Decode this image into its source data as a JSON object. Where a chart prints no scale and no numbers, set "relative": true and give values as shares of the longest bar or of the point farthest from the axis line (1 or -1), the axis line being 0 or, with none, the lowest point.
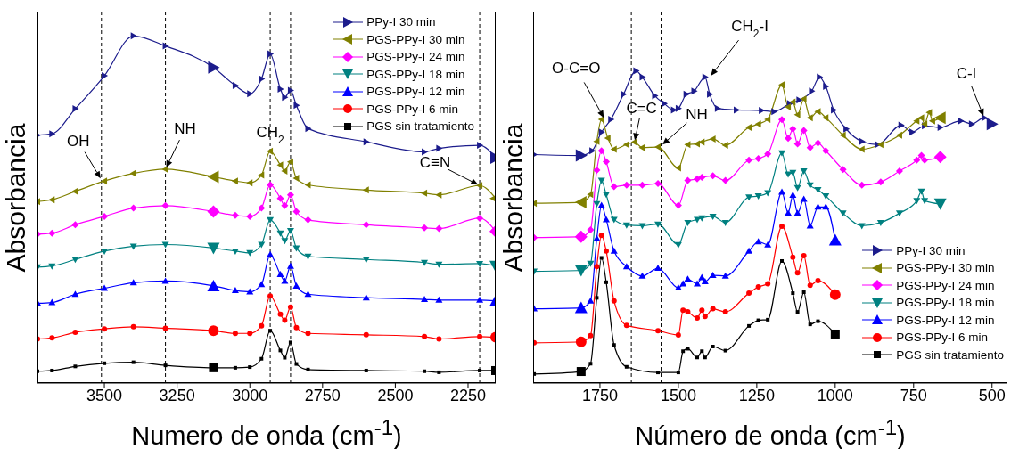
{
  "chart_data": [
    {
      "type": "line",
      "ylabel": "Absorbancia",
      "xlabel": "Numero de onda (cm$^{-1}$)",
      "relative": true,
      "xlim": [
        3730,
        2155
      ],
      "xticks": [
        3500,
        3250,
        3000,
        2750,
        2500,
        2250
      ],
      "legend": "top right",
      "line_style": "solid",
      "x": [
        3730,
        3680,
        3600,
        3500,
        3400,
        3290,
        3125,
        3050,
        3000,
        2960,
        2930,
        2895,
        2880,
        2860,
        2840,
        2800,
        2600,
        2400,
        2350,
        2210,
        2155
      ],
      "series": [
        {
          "name": "PPy-I 30 min",
          "color": "#1c1c8c",
          "marker": "triangle",
          "values": [
            0.714,
            0.718,
            0.79,
            0.885,
            1.0,
            0.971,
            0.909,
            0.857,
            0.833,
            0.876,
            0.948,
            0.847,
            0.823,
            0.843,
            0.8,
            0.733,
            0.695,
            0.666,
            0.676,
            0.685,
            0.649
          ]
        },
        {
          "name": "PGS-PPy-I 30 min",
          "color": "#808000",
          "marker": "triangle",
          "values": [
            0.523,
            0.528,
            0.552,
            0.582,
            0.604,
            0.616,
            0.594,
            0.582,
            0.577,
            0.599,
            0.668,
            0.628,
            0.611,
            0.637,
            0.59,
            0.571,
            0.556,
            0.547,
            0.542,
            0.569,
            0.532
          ]
        },
        {
          "name": "PGS-PPy-I 24 min",
          "color": "#ff00ff",
          "marker": "diamond",
          "values": [
            0.429,
            0.432,
            0.456,
            0.48,
            0.504,
            0.511,
            0.494,
            0.483,
            0.48,
            0.504,
            0.571,
            0.532,
            0.511,
            0.542,
            0.494,
            0.47,
            0.456,
            0.447,
            0.445,
            0.475,
            0.437
          ]
        },
        {
          "name": "PGS-PPy-I 18 min",
          "color": "#008080",
          "marker": "triangle",
          "values": [
            0.334,
            0.337,
            0.356,
            0.38,
            0.394,
            0.399,
            0.389,
            0.38,
            0.375,
            0.399,
            0.47,
            0.432,
            0.41,
            0.439,
            0.389,
            0.365,
            0.356,
            0.347,
            0.342,
            0.344,
            0.337
          ]
        },
        {
          "name": "PGS-PPy-I 12 min",
          "color": "#0000ff",
          "marker": "triangle",
          "values": [
            0.23,
            0.232,
            0.256,
            0.273,
            0.289,
            0.294,
            0.28,
            0.267,
            0.263,
            0.284,
            0.37,
            0.313,
            0.294,
            0.337,
            0.28,
            0.256,
            0.246,
            0.241,
            0.239,
            0.239,
            0.237
          ]
        },
        {
          "name": "PGS-PPy-I 6 min",
          "color": "#ff0000",
          "marker": "circle",
          "values": [
            0.127,
            0.13,
            0.146,
            0.156,
            0.162,
            0.158,
            0.151,
            0.143,
            0.143,
            0.165,
            0.251,
            0.198,
            0.181,
            0.219,
            0.16,
            0.143,
            0.139,
            0.134,
            0.127,
            0.134,
            0.132
          ]
        },
        {
          "name": "PGS sin tratamiento",
          "color": "#000000",
          "marker": "square",
          "values": [
            0.034,
            0.036,
            0.048,
            0.057,
            0.06,
            0.051,
            0.044,
            0.044,
            0.046,
            0.07,
            0.151,
            0.094,
            0.073,
            0.117,
            0.055,
            0.039,
            0.036,
            0.034,
            0.031,
            0.036,
            0.036
          ]
        }
      ],
      "ref_lines": [
        {
          "axis": "x",
          "value": 3510,
          "color": "#000000",
          "line_style": "dashed"
        },
        {
          "axis": "x",
          "value": 3290,
          "color": "#000000",
          "line_style": "dashed"
        },
        {
          "axis": "x",
          "value": 2930,
          "color": "#000000",
          "line_style": "dashed"
        },
        {
          "axis": "x",
          "value": 2860,
          "color": "#000000",
          "line_style": "dashed"
        },
        {
          "axis": "x",
          "value": 2210,
          "color": "#000000",
          "line_style": "dashed"
        }
      ],
      "annotations": [
        {
          "text": "OH",
          "x": 3510,
          "y": 0.585
        },
        {
          "text": "NH",
          "x": 3290,
          "y": 0.616
        },
        {
          "text": "CH$_{2}$",
          "x": 2930,
          "y": 0.668
        },
        {
          "text": "C≡N",
          "x": 2210,
          "y": 0.569
        }
      ]
    },
    {
      "type": "line",
      "ylabel": "Absorbancia",
      "xlabel": "Número de onda (cm$^{-1}$)",
      "relative": true,
      "xlim": [
        1963,
        451
      ],
      "xticks": [
        1750,
        1500,
        1250,
        1000,
        750,
        500
      ],
      "legend": "bottom right",
      "line_style": "solid",
      "series": [
        {
          "name": "PPy-I 30 min",
          "color": "#1c1c8c",
          "marker": "triangle",
          "x": [
            1960,
            1810,
            1775,
            1745,
            1715,
            1675,
            1635,
            1615,
            1575,
            1545,
            1515,
            1500,
            1475,
            1450,
            1415,
            1400,
            1375,
            1315,
            1235,
            1195,
            1145,
            1115,
            1075,
            1050,
            1030,
            1005,
            965,
            915,
            865,
            790,
            755,
            715,
            665,
            600,
            565,
            525,
            500
          ],
          "values": [
            0.732,
            0.729,
            0.744,
            0.804,
            0.845,
            0.925,
            1.0,
            0.98,
            0.92,
            0.895,
            0.875,
            0.88,
            0.925,
            0.935,
            0.98,
            0.925,
            0.88,
            0.875,
            0.873,
            0.87,
            0.895,
            0.907,
            0.935,
            0.98,
            0.95,
            0.875,
            0.814,
            0.774,
            0.764,
            0.826,
            0.804,
            0.824,
            0.819,
            0.84,
            0.83,
            0.85,
            0.83
          ]
        },
        {
          "name": "PGS-PPy-I 30 min",
          "color": "#808000",
          "marker": "triangle",
          "x": [
            1960,
            1810,
            1780,
            1760,
            1745,
            1725,
            1705,
            1665,
            1640,
            1615,
            1565,
            1500,
            1470,
            1440,
            1425,
            1390,
            1350,
            1275,
            1245,
            1215,
            1170,
            1150,
            1135,
            1120,
            1100,
            1080,
            1055,
            1030,
            975,
            915,
            855,
            795,
            740,
            725,
            715,
            700,
            690,
            665
          ],
          "values": [
            0.576,
            0.579,
            0.604,
            0.774,
            0.845,
            0.785,
            0.749,
            0.764,
            0.772,
            0.754,
            0.756,
            0.689,
            0.764,
            0.766,
            0.772,
            0.782,
            0.762,
            0.819,
            0.83,
            0.845,
            0.955,
            0.885,
            0.9,
            0.86,
            0.91,
            0.85,
            0.87,
            0.85,
            0.794,
            0.749,
            0.764,
            0.794,
            0.84,
            0.85,
            0.83,
            0.867,
            0.84,
            0.85
          ]
        },
        {
          "name": "PGS-PPy-I 24 min",
          "color": "#ff00ff",
          "marker": "diamond",
          "x": [
            1960,
            1810,
            1780,
            1760,
            1745,
            1730,
            1705,
            1665,
            1615,
            1565,
            1500,
            1470,
            1440,
            1425,
            1390,
            1350,
            1275,
            1245,
            1215,
            1170,
            1150,
            1135,
            1120,
            1100,
            1080,
            1055,
            1030,
            975,
            915,
            855,
            795,
            740,
            725,
            715,
            665
          ],
          "values": [
            0.466,
            0.469,
            0.491,
            0.682,
            0.744,
            0.709,
            0.629,
            0.634,
            0.634,
            0.639,
            0.569,
            0.649,
            0.654,
            0.659,
            0.664,
            0.649,
            0.714,
            0.719,
            0.734,
            0.844,
            0.784,
            0.814,
            0.766,
            0.809,
            0.754,
            0.769,
            0.744,
            0.684,
            0.634,
            0.644,
            0.679,
            0.714,
            0.729,
            0.714,
            0.724
          ]
        },
        {
          "name": "PGS-PPy-I 18 min",
          "color": "#008080",
          "marker": "triangle",
          "x": [
            1960,
            1810,
            1780,
            1760,
            1745,
            1730,
            1705,
            1665,
            1615,
            1565,
            1500,
            1470,
            1440,
            1425,
            1390,
            1350,
            1275,
            1245,
            1215,
            1170,
            1150,
            1135,
            1120,
            1100,
            1080,
            1055,
            1030,
            975,
            915,
            855,
            795,
            740,
            725,
            715,
            665
          ],
          "values": [
            0.358,
            0.361,
            0.383,
            0.574,
            0.649,
            0.604,
            0.524,
            0.506,
            0.504,
            0.509,
            0.443,
            0.514,
            0.524,
            0.529,
            0.534,
            0.514,
            0.596,
            0.599,
            0.609,
            0.737,
            0.669,
            0.674,
            0.626,
            0.679,
            0.634,
            0.619,
            0.599,
            0.544,
            0.504,
            0.514,
            0.544,
            0.584,
            0.614,
            0.584,
            0.574
          ]
        },
        {
          "name": "PGS-PPy-I 12 min",
          "color": "#0000ff",
          "marker": "triangle",
          "x": [
            1960,
            1810,
            1780,
            1760,
            1745,
            1730,
            1705,
            1665,
            1615,
            1565,
            1500,
            1485,
            1470,
            1440,
            1425,
            1415,
            1390,
            1350,
            1275,
            1245,
            1215,
            1170,
            1150,
            1135,
            1120,
            1100,
            1080,
            1055,
            1030,
            1000
          ],
          "values": [
            0.238,
            0.241,
            0.263,
            0.463,
            0.569,
            0.524,
            0.423,
            0.373,
            0.343,
            0.368,
            0.305,
            0.318,
            0.333,
            0.318,
            0.338,
            0.325,
            0.345,
            0.343,
            0.423,
            0.453,
            0.443,
            0.612,
            0.544,
            0.602,
            0.544,
            0.589,
            0.504,
            0.564,
            0.564,
            0.458
          ]
        },
        {
          "name": "PGS-PPy-I 6 min",
          "color": "#ff0000",
          "marker": "circle",
          "x": [
            1960,
            1810,
            1780,
            1760,
            1745,
            1730,
            1705,
            1665,
            1565,
            1500,
            1485,
            1470,
            1440,
            1425,
            1415,
            1390,
            1350,
            1275,
            1245,
            1215,
            1170,
            1135,
            1120,
            1100,
            1080,
            1055,
            1000
          ],
          "values": [
            0.129,
            0.132,
            0.152,
            0.373,
            0.473,
            0.423,
            0.263,
            0.185,
            0.168,
            0.154,
            0.233,
            0.228,
            0.208,
            0.233,
            0.213,
            0.238,
            0.228,
            0.288,
            0.308,
            0.318,
            0.502,
            0.403,
            0.353,
            0.408,
            0.313,
            0.328,
            0.283
          ]
        },
        {
          "name": "PGS sin tratamiento",
          "color": "#000000",
          "marker": "square",
          "x": [
            1960,
            1810,
            1780,
            1760,
            1745,
            1730,
            1705,
            1665,
            1565,
            1500,
            1485,
            1470,
            1440,
            1425,
            1415,
            1390,
            1350,
            1275,
            1245,
            1215,
            1170,
            1135,
            1120,
            1100,
            1080,
            1055,
            1000
          ],
          "values": [
            0.029,
            0.037,
            0.062,
            0.273,
            0.401,
            0.323,
            0.122,
            0.052,
            0.034,
            0.034,
            0.102,
            0.11,
            0.082,
            0.102,
            0.082,
            0.117,
            0.104,
            0.183,
            0.201,
            0.203,
            0.391,
            0.288,
            0.228,
            0.291,
            0.188,
            0.198,
            0.157
          ]
        }
      ],
      "ref_lines": [
        {
          "axis": "x",
          "value": 1650,
          "color": "#000000",
          "line_style": "dashed"
        },
        {
          "axis": "x",
          "value": 1555,
          "color": "#000000",
          "line_style": "dashed"
        }
      ],
      "annotations": [
        {
          "text": "O-C=O",
          "x": 1735,
          "y": 0.845
        },
        {
          "text": "C=C",
          "x": 1640,
          "y": 0.772
        },
        {
          "text": "NH",
          "x": 1555,
          "y": 0.76
        },
        {
          "text": "CH$_{2}$-I",
          "x": 1400,
          "y": 0.98
        },
        {
          "text": "C-I",
          "x": 525,
          "y": 0.85
        }
      ]
    }
  ]
}
